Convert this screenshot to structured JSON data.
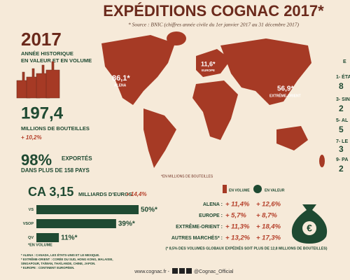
{
  "header": {
    "title": "EXPÉDITIONS COGNAC 2017*",
    "source": "* Source : BNIC (chiffres année civile du 1er janvier 2017 au 31 décembre 2017)"
  },
  "highlights": {
    "year": "2017",
    "year_caption": [
      "ANNÉE HISTORIQUE",
      "EN VALEUR ET EN VOLUME"
    ],
    "bottles": "197,4",
    "bottles_caption": "MILLIONS DE BOUTEILLES",
    "bottles_growth": "+ 10,2%",
    "export_share": "98%",
    "export_caption": [
      "EXPORTÉS",
      "DANS PLUS DE 158 PAYS"
    ],
    "revenue": "CA 3,15",
    "revenue_unit": "MILLIARDS D'EUROS",
    "revenue_growth": "+ 14,4%"
  },
  "volume_bars": {
    "bars": [
      {
        "label": "VS",
        "value": 50,
        "value_label": "50%*"
      },
      {
        "label": "VSOP",
        "value": 39,
        "value_label": "39%*"
      },
      {
        "label": "QV",
        "value": 11,
        "value_label": "11%*"
      }
    ],
    "note": "*EN VOLUME"
  },
  "map": {
    "regions": [
      {
        "value": "86,1*",
        "name": "ALENA"
      },
      {
        "value": "11,6*",
        "name": "EUROPE"
      },
      {
        "value": "56,9*",
        "name": "EXTRÊME-ORIENT"
      }
    ],
    "unit_note": "*EN MILLIONS DE BOUTEILLES"
  },
  "ranking": [
    "E",
    "1- ÉTA",
    "8",
    "3- SIN",
    "2",
    "5- AL",
    "5",
    "7- LE",
    "3",
    "9- PA",
    "2"
  ],
  "growth_table": {
    "headers": [
      "EN VOLUME",
      "EN VALEUR"
    ],
    "rows": [
      [
        "ALENA :",
        "+ 11,4%",
        "+ 12,6%"
      ],
      [
        "EUROPE :",
        "+ 5,7%",
        "+ 8,7%"
      ],
      [
        "EXTRÊME-ORIENT :",
        "+ 11,3%",
        "+ 18,4%"
      ],
      [
        "AUTRES MARCHÉS* :",
        "+ 13,2%",
        "+ 17,3%"
      ]
    ],
    "note": "(* 8,5% DES VOLUMES GLOBAUX EXPÉDIÉS SOIT PLUS DE 12,8 MILLIONS DE BOUTEILLES)"
  },
  "footnotes": [
    "* ALENA : CANADA, LES ÉTATS-UNIS ET LE MEXIQUE.",
    "* EXTRÊME-ORIENT : CORÉE DU SUD, HONG KONG, MALAISIE,",
    "SINGAPOUR, TAÏWAN, THAÏLANDE, CHINE, JAPON.",
    "* EUROPE : CONTINENT EUROPÉEN."
  ],
  "footer": {
    "site": "www.cognac.fr -",
    "handle": "@Cognac_Official"
  }
}
